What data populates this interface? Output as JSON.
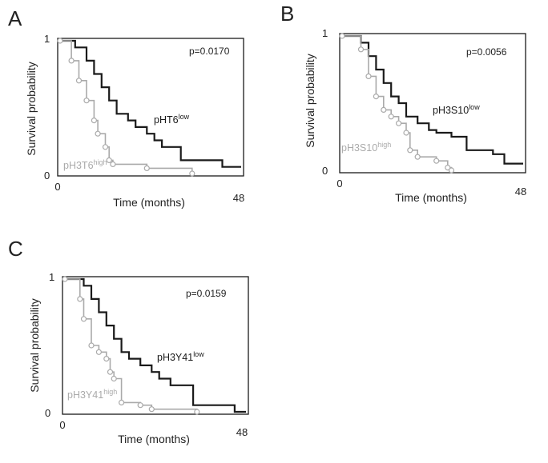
{
  "chart_data": [
    {
      "type": "line",
      "panel": "A",
      "title": "",
      "xlabel": "Time (months)",
      "ylabel": "Survival probability",
      "xlim": [
        0,
        48
      ],
      "ylim": [
        0,
        1
      ],
      "x_tick_labels": [
        "0",
        "48"
      ],
      "y_tick_labels": [
        "0",
        "1"
      ],
      "annotation": "p=0.0170",
      "series": [
        {
          "name": "pHT6 low",
          "label_base": "pHT6",
          "label_sup": "low",
          "color": "#1a1a1a",
          "markers": false,
          "steps": [
            [
              0,
              1
            ],
            [
              4,
              0.95
            ],
            [
              7,
              0.85
            ],
            [
              9,
              0.75
            ],
            [
              11,
              0.65
            ],
            [
              13,
              0.55
            ],
            [
              15,
              0.45
            ],
            [
              18,
              0.4
            ],
            [
              20,
              0.35
            ],
            [
              23,
              0.3
            ],
            [
              25,
              0.25
            ],
            [
              27,
              0.2
            ],
            [
              32,
              0.1
            ],
            [
              43,
              0.05
            ],
            [
              48,
              0.05
            ]
          ]
        },
        {
          "name": "pH3T6 high",
          "label_base": "pH3T6",
          "label_sup": "high",
          "color": "#aaaaaa",
          "markers": true,
          "steps": [
            [
              0,
              1
            ],
            [
              3,
              0.85
            ],
            [
              5,
              0.7
            ],
            [
              7,
              0.55
            ],
            [
              9,
              0.4
            ],
            [
              10,
              0.3
            ],
            [
              12,
              0.2
            ],
            [
              13,
              0.1
            ],
            [
              14,
              0.07
            ],
            [
              23,
              0.04
            ],
            [
              35,
              0.0
            ]
          ]
        }
      ]
    },
    {
      "type": "line",
      "panel": "B",
      "title": "",
      "xlabel": "Time (months)",
      "ylabel": "Survival probability",
      "xlim": [
        0,
        48
      ],
      "ylim": [
        0,
        1
      ],
      "x_tick_labels": [
        "0",
        "48"
      ],
      "y_tick_labels": [
        "0",
        "1"
      ],
      "annotation": "p=0.0056",
      "series": [
        {
          "name": "pH3S10 low",
          "label_base": "pH3S10",
          "label_sup": "low",
          "color": "#1a1a1a",
          "markers": false,
          "steps": [
            [
              0,
              1
            ],
            [
              5,
              0.95
            ],
            [
              7,
              0.85
            ],
            [
              9,
              0.75
            ],
            [
              11,
              0.65
            ],
            [
              13,
              0.55
            ],
            [
              15,
              0.5
            ],
            [
              17,
              0.4
            ],
            [
              20,
              0.35
            ],
            [
              23,
              0.3
            ],
            [
              25,
              0.28
            ],
            [
              29,
              0.25
            ],
            [
              33,
              0.15
            ],
            [
              40,
              0.12
            ],
            [
              43,
              0.05
            ],
            [
              48,
              0.05
            ]
          ]
        },
        {
          "name": "pH3S10 high",
          "label_base": "pH3S10",
          "label_sup": "high",
          "color": "#aaaaaa",
          "markers": true,
          "steps": [
            [
              0,
              1
            ],
            [
              5,
              0.9
            ],
            [
              7,
              0.7
            ],
            [
              9,
              0.55
            ],
            [
              11,
              0.45
            ],
            [
              13,
              0.4
            ],
            [
              15,
              0.35
            ],
            [
              17,
              0.28
            ],
            [
              18,
              0.15
            ],
            [
              20,
              0.1
            ],
            [
              25,
              0.07
            ],
            [
              28,
              0.02
            ],
            [
              29,
              0.0
            ]
          ]
        }
      ]
    },
    {
      "type": "line",
      "panel": "C",
      "title": "",
      "xlabel": "Time (months)",
      "ylabel": "Survival probability",
      "xlim": [
        0,
        48
      ],
      "ylim": [
        0,
        1
      ],
      "x_tick_labels": [
        "0",
        "48"
      ],
      "y_tick_labels": [
        "0",
        "1"
      ],
      "annotation": "p=0.0159",
      "series": [
        {
          "name": "pH3Y41 low",
          "label_base": "pH3Y41",
          "label_sup": "low",
          "color": "#1a1a1a",
          "markers": false,
          "steps": [
            [
              0,
              1
            ],
            [
              5,
              0.95
            ],
            [
              7,
              0.85
            ],
            [
              9,
              0.75
            ],
            [
              11,
              0.65
            ],
            [
              13,
              0.55
            ],
            [
              15,
              0.45
            ],
            [
              17,
              0.4
            ],
            [
              20,
              0.35
            ],
            [
              23,
              0.3
            ],
            [
              25,
              0.25
            ],
            [
              28,
              0.2
            ],
            [
              34,
              0.05
            ],
            [
              45,
              0.0
            ],
            [
              48,
              0.0
            ]
          ]
        },
        {
          "name": "pH3Y41 high",
          "label_base": "pH3Y41",
          "label_sup": "high",
          "color": "#aaaaaa",
          "markers": true,
          "steps": [
            [
              0,
              1
            ],
            [
              4,
              0.85
            ],
            [
              5,
              0.7
            ],
            [
              7,
              0.5
            ],
            [
              9,
              0.45
            ],
            [
              11,
              0.4
            ],
            [
              12,
              0.3
            ],
            [
              13,
              0.25
            ],
            [
              15,
              0.07
            ],
            [
              20,
              0.05
            ],
            [
              23,
              0.02
            ],
            [
              35,
              0.0
            ]
          ]
        }
      ]
    }
  ]
}
